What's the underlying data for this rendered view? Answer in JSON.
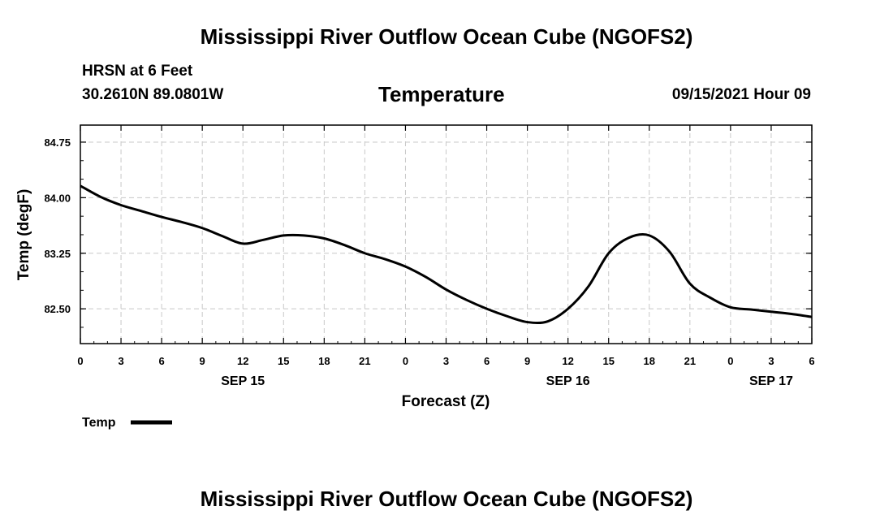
{
  "header": {
    "title": "Mississippi River Outflow Ocean Cube (NGOFS2)",
    "station": "HRSN at 6 Feet",
    "coords": "30.2610N  89.0801W",
    "variable": "Temperature",
    "datetime": "09/15/2021 Hour 09"
  },
  "footer": {
    "title": "Mississippi River Outflow Ocean Cube (NGOFS2)"
  },
  "colors": {
    "line": "#000000",
    "grid": "#c8c8c8",
    "frame": "#000000",
    "background": "#ffffff"
  },
  "chart_data": {
    "type": "line",
    "title": "Temperature",
    "xlabel": "Forecast (Z)",
    "ylabel": "Temp (degF)",
    "xlim": [
      0,
      54
    ],
    "ylim": [
      82.03,
      84.98
    ],
    "x_ticks": [
      0,
      3,
      6,
      9,
      12,
      15,
      18,
      21,
      24,
      27,
      30,
      33,
      36,
      39,
      42,
      45,
      48,
      51,
      54
    ],
    "x_tick_labels": [
      "0",
      "3",
      "6",
      "9",
      "12",
      "15",
      "18",
      "21",
      "0",
      "3",
      "6",
      "9",
      "12",
      "15",
      "18",
      "21",
      "0",
      "3",
      "6"
    ],
    "day_labels": [
      {
        "x": 12,
        "label": "SEP 15"
      },
      {
        "x": 36,
        "label": "SEP 16"
      },
      {
        "x": 51,
        "label": "SEP 17"
      }
    ],
    "y_ticks": [
      82.5,
      83.25,
      84.0,
      84.75
    ],
    "y_tick_labels": [
      "82.50",
      "83.25",
      "84.00",
      "84.75"
    ],
    "y_minor_step": 0.25,
    "grid": true,
    "legend": {
      "position": "bottom-left",
      "entries": [
        "Temp"
      ]
    },
    "series": [
      {
        "name": "Temp",
        "x": [
          0,
          1.5,
          3,
          4.5,
          6,
          7.5,
          9,
          10.5,
          12,
          13.5,
          15,
          16.5,
          18,
          19.5,
          21,
          22.5,
          24,
          25.5,
          27,
          28.5,
          30,
          31.5,
          33,
          34.5,
          36,
          37.5,
          39,
          40.5,
          42,
          43.5,
          45,
          46.5,
          48,
          49.5,
          51,
          52.5,
          54
        ],
        "y": [
          84.16,
          84.01,
          83.9,
          83.82,
          83.74,
          83.67,
          83.59,
          83.48,
          83.38,
          83.43,
          83.49,
          83.49,
          83.45,
          83.36,
          83.25,
          83.17,
          83.07,
          82.93,
          82.76,
          82.62,
          82.5,
          82.4,
          82.32,
          82.33,
          82.5,
          82.8,
          83.25,
          83.46,
          83.49,
          83.27,
          82.84,
          82.65,
          82.52,
          82.49,
          82.46,
          82.43,
          82.39
        ]
      }
    ]
  }
}
